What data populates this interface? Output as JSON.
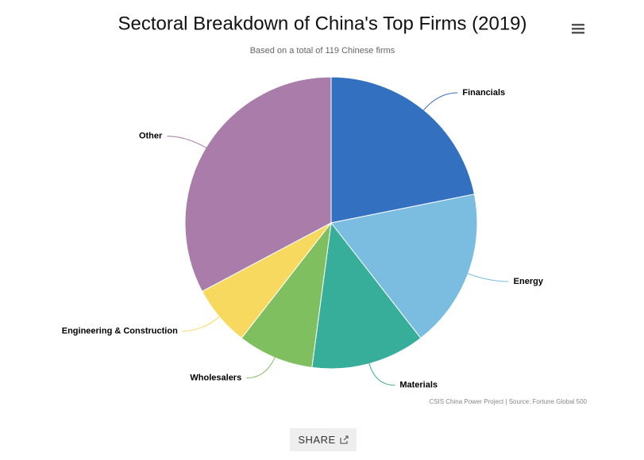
{
  "chart_data": {
    "type": "pie",
    "title": "Sectoral Breakdown of China's Top Firms (2019)",
    "subtitle": "Based on a total of 119 Chinese firms",
    "categories": [
      "Financials",
      "Energy",
      "Materials",
      "Wholesalers",
      "Engineering & Construction",
      "Other"
    ],
    "values": [
      26,
      21,
      15,
      10,
      8,
      39
    ],
    "colors": [
      "#3470c0",
      "#7bbde0",
      "#37ae9a",
      "#7fbf60",
      "#f8d960",
      "#a97ca9"
    ],
    "credits": "CSIS China Power Project | Source: Fortune Global 500",
    "share_button": "SHARE"
  }
}
